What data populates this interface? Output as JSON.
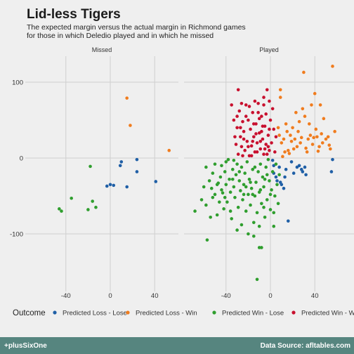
{
  "title": "Lid-less Tigers",
  "subtitle_lines": [
    "The expected margin versus the actual margin in Richmond games",
    "for those in which Deledio played and  in which he missed"
  ],
  "footer": {
    "left": "+plusSixOne",
    "right": "Data Source: afltables.com"
  },
  "chart_data": {
    "type": "scatter",
    "title": "Lid-less Tigers",
    "xlabel": "",
    "ylabel": "",
    "facets": [
      "Missed",
      "Played"
    ],
    "xlim": [
      -60,
      60
    ],
    "ylim": [
      -160,
      130
    ],
    "x_ticks": [
      -40,
      0,
      40
    ],
    "y_ticks": [
      -100,
      0,
      100
    ],
    "grid": true,
    "legend": {
      "title": "Outcome",
      "placement": "bottom"
    },
    "series": [
      {
        "name": "Predicted Loss - Lose",
        "color": "#1f5fa6",
        "points": {
          "Missed": [
            [
              0,
              -35
            ],
            [
              -3,
              -37
            ],
            [
              3,
              -36
            ],
            [
              10,
              -5
            ],
            [
              9,
              -10
            ],
            [
              15,
              -38
            ],
            [
              24,
              -2
            ],
            [
              24,
              -18
            ],
            [
              41,
              -31
            ]
          ],
          "Played": [
            [
              2,
              -3
            ],
            [
              3,
              -10
            ],
            [
              3,
              -20
            ],
            [
              5,
              -25
            ],
            [
              6,
              -30
            ],
            [
              8,
              -12
            ],
            [
              9,
              -32
            ],
            [
              10,
              -35
            ],
            [
              12,
              -40
            ],
            [
              13,
              -25
            ],
            [
              14,
              -15
            ],
            [
              16,
              -83
            ],
            [
              19,
              -5
            ],
            [
              21,
              -20
            ],
            [
              24,
              -12
            ],
            [
              26,
              -10
            ],
            [
              28,
              -15
            ],
            [
              29,
              -18
            ],
            [
              31,
              -12
            ],
            [
              32,
              -22
            ],
            [
              55,
              -18
            ],
            [
              56,
              -2
            ]
          ]
        }
      },
      {
        "name": "Predicted Loss - Win",
        "color": "#f07c1e",
        "points": {
          "Missed": [
            [
              15,
              79
            ],
            [
              18,
              43
            ],
            [
              53,
              10
            ]
          ],
          "Played": [
            [
              7,
              40
            ],
            [
              8,
              30
            ],
            [
              9,
              80
            ],
            [
              9,
              90
            ],
            [
              10,
              20
            ],
            [
              11,
              2
            ],
            [
              12,
              25
            ],
            [
              13,
              8
            ],
            [
              14,
              45
            ],
            [
              15,
              35
            ],
            [
              16,
              10
            ],
            [
              17,
              6
            ],
            [
              18,
              30
            ],
            [
              19,
              22
            ],
            [
              20,
              40
            ],
            [
              21,
              12
            ],
            [
              22,
              25
            ],
            [
              23,
              60
            ],
            [
              24,
              15
            ],
            [
              25,
              35
            ],
            [
              26,
              48
            ],
            [
              27,
              20
            ],
            [
              28,
              27
            ],
            [
              29,
              65
            ],
            [
              30,
              113
            ],
            [
              31,
              55
            ],
            [
              32,
              13
            ],
            [
              33,
              8
            ],
            [
              34,
              25
            ],
            [
              35,
              45
            ],
            [
              36,
              30
            ],
            [
              37,
              70
            ],
            [
              38,
              18
            ],
            [
              39,
              27
            ],
            [
              40,
              85
            ],
            [
              41,
              38
            ],
            [
              42,
              28
            ],
            [
              43,
              9
            ],
            [
              44,
              15
            ],
            [
              45,
              70
            ],
            [
              46,
              32
            ],
            [
              47,
              20
            ],
            [
              48,
              52
            ],
            [
              50,
              25
            ],
            [
              52,
              28
            ],
            [
              53,
              17
            ],
            [
              54,
              12
            ],
            [
              56,
              121
            ],
            [
              58,
              35
            ]
          ]
        }
      },
      {
        "name": "Predicted Win - Lose",
        "color": "#2f9e2e",
        "points": {
          "Missed": [
            [
              -46,
              -67
            ],
            [
              -44,
              -70
            ],
            [
              -35,
              -53
            ],
            [
              -20,
              -68
            ],
            [
              -18,
              -11
            ],
            [
              -16,
              -57
            ],
            [
              -13,
              -65
            ]
          ],
          "Played": [
            [
              -68,
              -70
            ],
            [
              -62,
              -55
            ],
            [
              -58,
              -62
            ],
            [
              -58,
              -12
            ],
            [
              -57,
              -108
            ],
            [
              -55,
              -30
            ],
            [
              -53,
              -40
            ],
            [
              -52,
              -20
            ],
            [
              -50,
              -48
            ],
            [
              -50,
              -8
            ],
            [
              -48,
              -75
            ],
            [
              -47,
              -33
            ],
            [
              -46,
              -58
            ],
            [
              -45,
              -25
            ],
            [
              -44,
              -10
            ],
            [
              -43,
              -46
            ],
            [
              -42,
              -67
            ],
            [
              -41,
              -18
            ],
            [
              -40,
              -35
            ],
            [
              -39,
              -58
            ],
            [
              -38,
              -2
            ],
            [
              -37,
              -28
            ],
            [
              -36,
              -45
            ],
            [
              -35,
              -80
            ],
            [
              -34,
              -15
            ],
            [
              -33,
              -38
            ],
            [
              -32,
              -52
            ],
            [
              -31,
              -22
            ],
            [
              -30,
              -8
            ],
            [
              -29,
              -65
            ],
            [
              -28,
              -30
            ],
            [
              -27,
              -43
            ],
            [
              -26,
              -88
            ],
            [
              -26,
              -12
            ],
            [
              -25,
              -55
            ],
            [
              -24,
              -35
            ],
            [
              -23,
              -20
            ],
            [
              -22,
              -70
            ],
            [
              -21,
              -5
            ],
            [
              -20,
              -48
            ],
            [
              -19,
              -28
            ],
            [
              -18,
              -62
            ],
            [
              -17,
              -40
            ],
            [
              -16,
              -15
            ],
            [
              -15,
              -103
            ],
            [
              -15,
              -85
            ],
            [
              -14,
              -50
            ],
            [
              -13,
              -32
            ],
            [
              -12,
              -72
            ],
            [
              -11,
              -18
            ],
            [
              -10,
              -118
            ],
            [
              -10,
              -45
            ],
            [
              -9,
              -8
            ],
            [
              -8,
              -60
            ],
            [
              -7,
              -25
            ],
            [
              -6,
              -38
            ],
            [
              -5,
              -78
            ],
            [
              -4,
              -12
            ],
            [
              -3,
              -55
            ],
            [
              -2,
              -2
            ],
            [
              -1,
              -30
            ],
            [
              0,
              -68
            ],
            [
              1,
              -42
            ],
            [
              2,
              -18
            ],
            [
              3,
              -90
            ],
            [
              4,
              -50
            ],
            [
              5,
              -8
            ],
            [
              6,
              -35
            ],
            [
              7,
              -60
            ],
            [
              8,
              -22
            ],
            [
              -12,
              -160
            ],
            [
              -20,
              -100
            ],
            [
              -30,
              -95
            ],
            [
              -36,
              -70
            ],
            [
              -48,
              -35
            ],
            [
              -52,
              -52
            ],
            [
              -44,
              -42
            ],
            [
              -40,
              -5
            ],
            [
              -33,
              -3
            ],
            [
              -28,
              -18
            ],
            [
              -24,
              -48
            ],
            [
              -18,
              -32
            ],
            [
              -14,
              -12
            ],
            [
              -9,
              -42
            ],
            [
              -6,
              -65
            ],
            [
              -3,
              -22
            ],
            [
              0,
              -48
            ],
            [
              3,
              -72
            ],
            [
              -16,
              -48
            ],
            [
              -22,
              -38
            ],
            [
              -34,
              -28
            ],
            [
              -41,
              -52
            ],
            [
              -54,
              -78
            ],
            [
              -60,
              -38
            ],
            [
              -10,
              -90
            ],
            [
              -8,
              -118
            ],
            [
              -5,
              -28
            ]
          ]
        }
      },
      {
        "name": "Predicted Win - Win",
        "color": "#c8102e",
        "points": {
          "Missed": [],
          "Played": [
            [
              -35,
              70
            ],
            [
              -33,
              50
            ],
            [
              -31,
              18
            ],
            [
              -30,
              40
            ],
            [
              -29,
              5
            ],
            [
              -28,
              62
            ],
            [
              -27,
              28
            ],
            [
              -26,
              15
            ],
            [
              -25,
              48
            ],
            [
              -24,
              35
            ],
            [
              -23,
              10
            ],
            [
              -22,
              70
            ],
            [
              -21,
              22
            ],
            [
              -20,
              50
            ],
            [
              -19,
              3
            ],
            [
              -18,
              38
            ],
            [
              -17,
              16
            ],
            [
              -16,
              60
            ],
            [
              -15,
              28
            ],
            [
              -14,
              8
            ],
            [
              -13,
              45
            ],
            [
              -12,
              20
            ],
            [
              -11,
              72
            ],
            [
              -10,
              33
            ],
            [
              -9,
              12
            ],
            [
              -8,
              55
            ],
            [
              -7,
              25
            ],
            [
              -6,
              5
            ],
            [
              -5,
              42
            ],
            [
              -4,
              18
            ],
            [
              -3,
              90
            ],
            [
              -2,
              30
            ],
            [
              -1,
              10
            ],
            [
              0,
              50
            ],
            [
              1,
              20
            ],
            [
              2,
              65
            ],
            [
              3,
              38
            ],
            [
              4,
              8
            ],
            [
              5,
              28
            ],
            [
              -29,
              90
            ],
            [
              -14,
              75
            ],
            [
              -6,
              70
            ],
            [
              -20,
              15
            ],
            [
              -32,
              28
            ],
            [
              -17,
              3
            ],
            [
              -10,
              52
            ],
            [
              -4,
              58
            ],
            [
              -1,
              38
            ],
            [
              -24,
              25
            ],
            [
              -12,
              8
            ],
            [
              -8,
              35
            ],
            [
              -2,
              15
            ],
            [
              -22,
              55
            ],
            [
              -15,
              45
            ],
            [
              -7,
              42
            ],
            [
              -27,
              40
            ],
            [
              -19,
              68
            ],
            [
              -9,
              22
            ],
            [
              -13,
              32
            ],
            [
              -3,
              5
            ],
            [
              -25,
              3
            ],
            [
              -30,
              55
            ],
            [
              -11,
              60
            ],
            [
              -5,
              12
            ],
            [
              -16,
              22
            ],
            [
              -26,
              72
            ],
            [
              -6,
              80
            ],
            [
              -1,
              75
            ]
          ]
        }
      }
    ]
  }
}
